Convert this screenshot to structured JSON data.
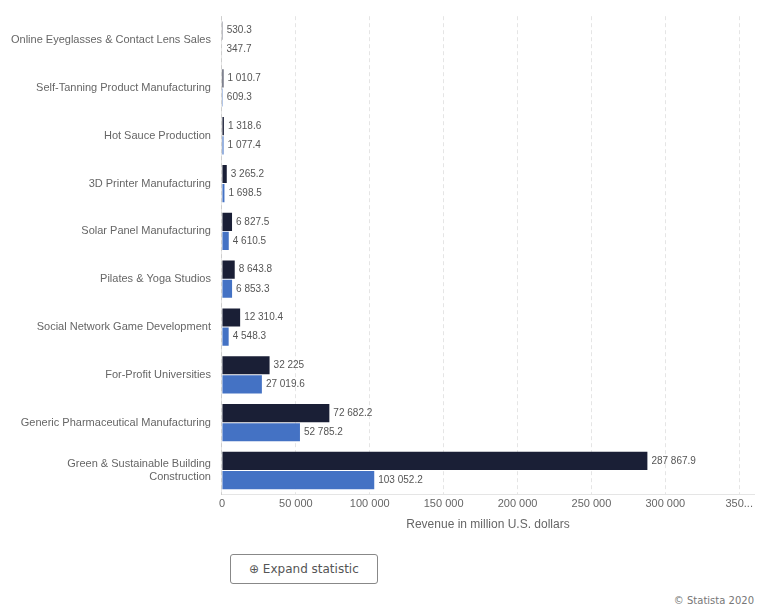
{
  "chart_data": {
    "type": "bar",
    "orientation": "horizontal",
    "categories": [
      "Online Eyeglasses & Contact Lens Sales",
      "Self-Tanning Product Manufacturing",
      "Hot Sauce Production",
      "3D Printer Manufacturing",
      "Solar Panel Manufacturing",
      "Pilates & Yoga Studios",
      "Social Network Game Development",
      "For-Profit Universities",
      "Generic Pharmaceutical Manufacturing",
      "Green & Sustainable Building\nConstruction"
    ],
    "series": [
      {
        "color": "#1a1f36",
        "values": [
          530.3,
          1010.7,
          1318.6,
          3265.2,
          6827.5,
          8643.8,
          12310.4,
          32225.0,
          72682.2,
          287867.9
        ],
        "value_labels": [
          "530.3",
          "1 010.7",
          "1 318.6",
          "3 265.2",
          "6 827.5",
          "8 643.8",
          "12 310.4",
          "32 225",
          "72 682.2",
          "287 867.9"
        ]
      },
      {
        "color": "#4472c4",
        "values": [
          347.7,
          609.3,
          1077.4,
          1698.5,
          4610.5,
          6853.3,
          4548.3,
          27019.6,
          52785.2,
          103052.2
        ],
        "value_labels": [
          "347.7",
          "609.3",
          "1 077.4",
          "1 698.5",
          "4 610.5",
          "6 853.3",
          "4 548.3",
          "27 019.6",
          "52 785.2",
          "103 052.2"
        ]
      }
    ],
    "xlabel": "Revenue in million U.S. dollars",
    "xlim": [
      0,
      360000
    ],
    "xticks": [
      0,
      {
        "value": 50000,
        "label": "50 000"
      },
      {
        "value": 100000,
        "label": "100 000"
      },
      {
        "value": 150000,
        "label": "150 000"
      },
      {
        "value": 200000,
        "label": "200 000"
      },
      {
        "value": 250000,
        "label": "250 000"
      },
      {
        "value": 300000,
        "label": "300 000"
      },
      {
        "value": 350000,
        "label": "350..."
      }
    ],
    "grid": true,
    "data_labels": true,
    "annotations": [
      "⊕ Expand statistic",
      "© Statista 2020"
    ]
  }
}
